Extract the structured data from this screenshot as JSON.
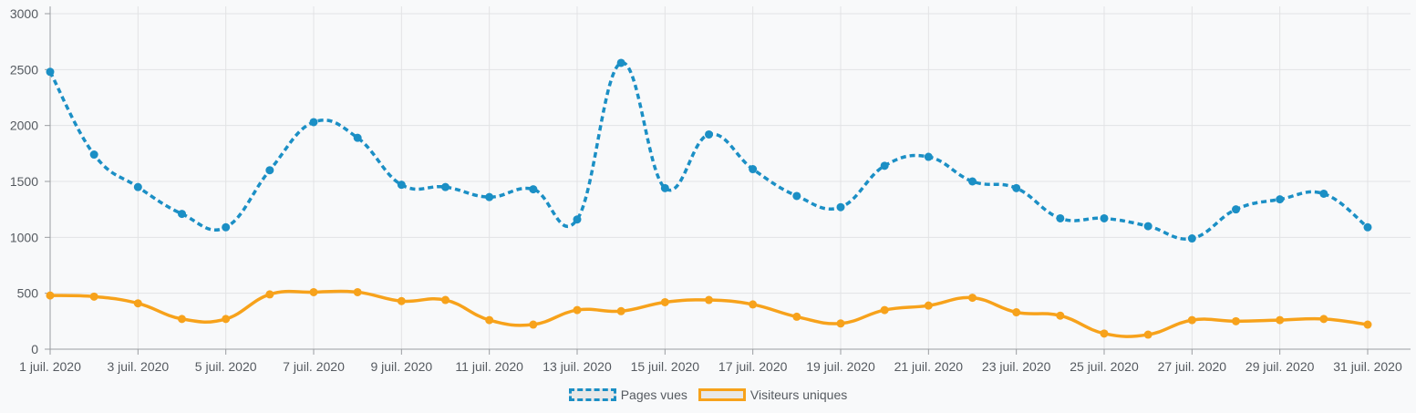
{
  "colors": {
    "pages": "#1b8fc5",
    "visitors": "#f7a21b",
    "grid": "#e2e3e5",
    "axis": "#9a9da1"
  },
  "chart_data": {
    "type": "line",
    "title": "",
    "xlabel": "",
    "ylabel": "",
    "ylim": [
      0,
      3000
    ],
    "y_ticks": [
      "0",
      "500",
      "1000",
      "1500",
      "2000",
      "2500",
      "3000"
    ],
    "x_tick_labels": [
      "1 juil. 2020",
      "3 juil. 2020",
      "5 juil. 2020",
      "7 juil. 2020",
      "9 juil. 2020",
      "11 juil. 2020",
      "13 juil. 2020",
      "15 juil. 2020",
      "17 juil. 2020",
      "19 juil. 2020",
      "21 juil. 2020",
      "23 juil. 2020",
      "25 juil. 2020",
      "27 juil. 2020",
      "29 juil. 2020",
      "31 juil. 2020"
    ],
    "x": [
      "2020-07-01",
      "2020-07-02",
      "2020-07-03",
      "2020-07-04",
      "2020-07-05",
      "2020-07-06",
      "2020-07-07",
      "2020-07-08",
      "2020-07-09",
      "2020-07-10",
      "2020-07-11",
      "2020-07-12",
      "2020-07-13",
      "2020-07-14",
      "2020-07-15",
      "2020-07-16",
      "2020-07-17",
      "2020-07-18",
      "2020-07-19",
      "2020-07-20",
      "2020-07-21",
      "2020-07-22",
      "2020-07-23",
      "2020-07-24",
      "2020-07-25",
      "2020-07-26",
      "2020-07-27",
      "2020-07-28",
      "2020-07-29",
      "2020-07-30",
      "2020-07-31"
    ],
    "grid": true,
    "legend_position": "bottom",
    "series": [
      {
        "name": "Pages vues",
        "line_style": "dashed",
        "values": [
          2480,
          1740,
          1450,
          1210,
          1090,
          1600,
          2030,
          1890,
          1470,
          1450,
          1360,
          1430,
          1160,
          2560,
          1440,
          1920,
          1610,
          1370,
          1270,
          1640,
          1720,
          1500,
          1440,
          1170,
          1170,
          1100,
          990,
          1250,
          1340,
          1390,
          1090
        ]
      },
      {
        "name": "Visiteurs uniques",
        "line_style": "solid",
        "values": [
          480,
          470,
          410,
          270,
          270,
          490,
          510,
          510,
          430,
          440,
          260,
          220,
          350,
          340,
          420,
          440,
          400,
          290,
          230,
          350,
          390,
          460,
          330,
          300,
          140,
          130,
          260,
          250,
          260,
          270,
          220
        ]
      }
    ]
  }
}
